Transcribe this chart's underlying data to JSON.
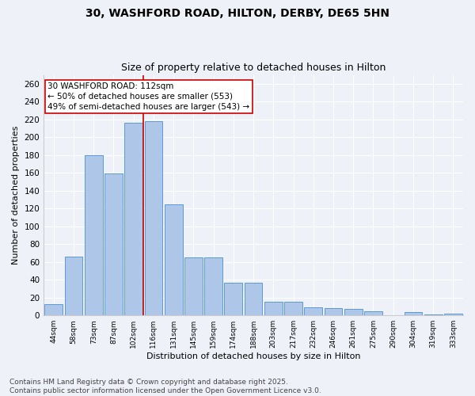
{
  "title1": "30, WASHFORD ROAD, HILTON, DERBY, DE65 5HN",
  "title2": "Size of property relative to detached houses in Hilton",
  "xlabel": "Distribution of detached houses by size in Hilton",
  "ylabel": "Number of detached properties",
  "categories": [
    "44sqm",
    "58sqm",
    "73sqm",
    "87sqm",
    "102sqm",
    "116sqm",
    "131sqm",
    "145sqm",
    "159sqm",
    "174sqm",
    "188sqm",
    "203sqm",
    "217sqm",
    "232sqm",
    "246sqm",
    "261sqm",
    "275sqm",
    "290sqm",
    "304sqm",
    "319sqm",
    "333sqm"
  ],
  "values": [
    13,
    66,
    180,
    159,
    216,
    218,
    125,
    65,
    65,
    37,
    37,
    15,
    15,
    9,
    8,
    7,
    5,
    0,
    4,
    1,
    2
  ],
  "bar_color": "#aec6e8",
  "bar_edge_color": "#5b9bd5",
  "vline_color": "#cc0000",
  "annotation_text": "30 WASHFORD ROAD: 112sqm\n← 50% of detached houses are smaller (553)\n49% of semi-detached houses are larger (543) →",
  "annotation_box_color": "#ffffff",
  "annotation_box_edge": "#cc0000",
  "ylim": [
    0,
    270
  ],
  "yticks": [
    0,
    20,
    40,
    60,
    80,
    100,
    120,
    140,
    160,
    180,
    200,
    220,
    240,
    260
  ],
  "footer1": "Contains HM Land Registry data © Crown copyright and database right 2025.",
  "footer2": "Contains public sector information licensed under the Open Government Licence v3.0.",
  "bg_color": "#eef2f8",
  "title1_fontsize": 10,
  "title2_fontsize": 9,
  "annot_fontsize": 7.5,
  "footer_fontsize": 6.5
}
